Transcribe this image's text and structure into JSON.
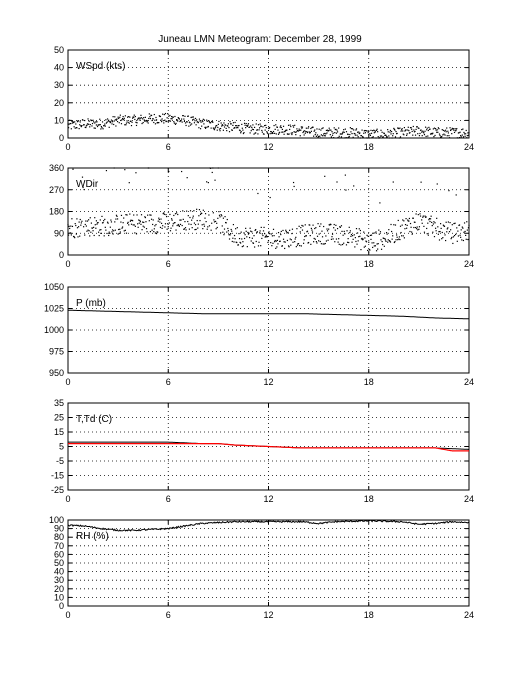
{
  "title": "Juneau LMN Meteogram:  December 28, 1999",
  "colors": {
    "dewpoint": "#ff0000",
    "trace": "#000000",
    "grid": "#000000"
  },
  "chart_data": [
    {
      "type": "scatter",
      "label": "WSpd (kts)",
      "xlim": [
        0,
        24
      ],
      "xticks": [
        0,
        6,
        12,
        18,
        24
      ],
      "ylim": [
        0,
        50
      ],
      "yticks": [
        0,
        10,
        20,
        30,
        40,
        50
      ],
      "grid": true,
      "series": [
        {
          "x": [
            0,
            1,
            2,
            3,
            4,
            5,
            6,
            7,
            8,
            9,
            10,
            11,
            12,
            13,
            14,
            15,
            16,
            17,
            18,
            19,
            20,
            21,
            22,
            23,
            24
          ],
          "y": [
            7,
            8,
            8,
            10,
            10,
            11,
            11,
            10,
            8,
            7,
            6,
            5,
            5,
            5,
            4,
            3,
            3,
            3,
            2,
            2,
            3,
            4,
            3,
            3,
            3
          ]
        }
      ]
    },
    {
      "type": "scatter",
      "label": "WDir",
      "xlim": [
        0,
        24
      ],
      "xticks": [
        0,
        6,
        12,
        18,
        24
      ],
      "ylim": [
        0,
        360
      ],
      "yticks": [
        0,
        90,
        180,
        270,
        360
      ],
      "grid": true,
      "series": [
        {
          "x": [
            0,
            1,
            2,
            3,
            4,
            5,
            6,
            7,
            8,
            9,
            10,
            11,
            12,
            13,
            14,
            15,
            16,
            17,
            18,
            19,
            20,
            21,
            22,
            23,
            24
          ],
          "y": [
            110,
            120,
            120,
            125,
            130,
            130,
            135,
            145,
            150,
            140,
            80,
            75,
            70,
            70,
            80,
            90,
            85,
            80,
            50,
            70,
            110,
            140,
            110,
            90,
            100
          ]
        }
      ]
    },
    {
      "type": "line",
      "label": "P (mb)",
      "xlim": [
        0,
        24
      ],
      "xticks": [
        0,
        6,
        12,
        18,
        24
      ],
      "ylim": [
        950,
        1050
      ],
      "yticks": [
        950,
        975,
        1000,
        1025,
        1050
      ],
      "grid": true,
      "series": [
        {
          "x": [
            0,
            2,
            4,
            6,
            8,
            10,
            12,
            14,
            16,
            18,
            20,
            22,
            24
          ],
          "y": [
            1023,
            1022,
            1021,
            1020,
            1019,
            1019,
            1019,
            1019,
            1018,
            1017,
            1016,
            1014,
            1013
          ]
        }
      ]
    },
    {
      "type": "line",
      "label": "T,Td (C)",
      "xlim": [
        0,
        24
      ],
      "xticks": [
        0,
        6,
        12,
        18,
        24
      ],
      "ylim": [
        -25,
        35
      ],
      "yticks": [
        -25,
        -15,
        -5,
        5,
        15,
        25,
        35
      ],
      "grid": true,
      "series": [
        {
          "x": [
            0,
            2,
            4,
            6,
            8,
            9,
            10,
            12,
            14,
            15,
            16,
            18,
            20,
            22,
            24
          ],
          "y": [
            8,
            8,
            8,
            8,
            7,
            7,
            6,
            5,
            4,
            4,
            4,
            4,
            4,
            4,
            3
          ]
        },
        {
          "x": [
            0,
            2,
            4,
            6,
            8,
            9,
            10,
            12,
            14,
            15,
            16,
            18,
            20,
            22,
            23,
            24
          ],
          "y": [
            7,
            7,
            7,
            7,
            7,
            7,
            6,
            5,
            4,
            4,
            4,
            4,
            4,
            4,
            2,
            2
          ]
        }
      ]
    },
    {
      "type": "line",
      "label": "RH (%)",
      "xlim": [
        0,
        24
      ],
      "xticks": [
        0,
        6,
        12,
        18,
        24
      ],
      "ylim": [
        0,
        100
      ],
      "yticks": [
        0,
        10,
        20,
        30,
        40,
        50,
        60,
        70,
        80,
        90,
        100
      ],
      "grid": true,
      "series": [
        {
          "x": [
            0,
            1,
            2,
            3,
            4,
            5,
            6,
            7,
            8,
            9,
            10,
            12,
            14,
            15,
            16,
            18,
            20,
            21,
            22,
            23,
            24
          ],
          "y": [
            94,
            93,
            90,
            88,
            88,
            89,
            90,
            93,
            96,
            97,
            98,
            98,
            98,
            96,
            98,
            99,
            98,
            95,
            96,
            98,
            97
          ]
        }
      ]
    }
  ]
}
